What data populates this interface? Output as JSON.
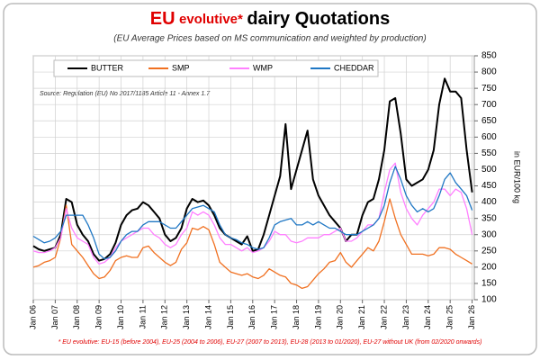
{
  "chart_data": {
    "type": "line",
    "title_parts": [
      "EU",
      "evolutive*",
      "dairy Quotations"
    ],
    "subtitle": "(EU Average Prices based on MS communication and weighted by production)",
    "source": "Source: Regulation (EU) No 2017/1185 Article 11 - Annex 1.7",
    "footnote": "* EU evolutive: EU-15 (before 2004), EU-25 (2004 to 2006), EU-27 (2007 to 2013), EU-28 (2013 to 01/2020), EU-27 without UK (from 02/2020 onwards)",
    "y_label": "in EUR/100 kg",
    "x": [
      2006,
      2006.25,
      2006.5,
      2006.75,
      2007,
      2007.25,
      2007.5,
      2007.75,
      2008,
      2008.25,
      2008.5,
      2008.75,
      2009,
      2009.25,
      2009.5,
      2009.75,
      2010,
      2010.25,
      2010.5,
      2010.75,
      2011,
      2011.25,
      2011.5,
      2011.75,
      2012,
      2012.25,
      2012.5,
      2012.75,
      2013,
      2013.25,
      2013.5,
      2013.75,
      2014,
      2014.25,
      2014.5,
      2014.75,
      2015,
      2015.25,
      2015.5,
      2015.75,
      2016,
      2016.25,
      2016.5,
      2016.75,
      2017,
      2017.25,
      2017.5,
      2017.75,
      2018,
      2018.25,
      2018.5,
      2018.75,
      2019,
      2019.25,
      2019.5,
      2019.75,
      2020,
      2020.25,
      2020.5,
      2020.75,
      2021,
      2021.25,
      2021.5,
      2021.75,
      2022,
      2022.25,
      2022.5,
      2022.75,
      2023,
      2023.25,
      2023.5,
      2023.75,
      2024,
      2024.25,
      2024.5,
      2024.75,
      2025,
      2025.25,
      2025.5,
      2025.75,
      2026
    ],
    "series": [
      {
        "name": "BUTTER",
        "color": "#000000",
        "values": [
          265,
          255,
          250,
          255,
          260,
          300,
          410,
          400,
          330,
          300,
          280,
          240,
          220,
          225,
          240,
          275,
          330,
          360,
          375,
          380,
          400,
          390,
          370,
          350,
          300,
          280,
          290,
          320,
          380,
          410,
          400,
          405,
          390,
          360,
          320,
          300,
          290,
          280,
          270,
          295,
          250,
          255,
          300,
          360,
          420,
          480,
          640,
          440,
          500,
          560,
          620,
          470,
          420,
          390,
          360,
          340,
          320,
          280,
          300,
          300,
          360,
          400,
          410,
          470,
          560,
          710,
          720,
          610,
          470,
          450,
          460,
          470,
          500,
          560,
          700,
          780,
          740,
          740,
          720,
          560,
          430
        ]
      },
      {
        "name": "SMP",
        "color": "#f07020",
        "values": [
          200,
          205,
          215,
          220,
          230,
          290,
          390,
          270,
          250,
          230,
          205,
          180,
          165,
          170,
          190,
          220,
          230,
          235,
          230,
          230,
          260,
          265,
          245,
          230,
          215,
          205,
          215,
          255,
          275,
          320,
          315,
          325,
          315,
          270,
          215,
          200,
          185,
          180,
          175,
          180,
          170,
          165,
          175,
          195,
          185,
          175,
          170,
          150,
          145,
          135,
          140,
          160,
          180,
          195,
          215,
          220,
          245,
          215,
          200,
          220,
          240,
          260,
          250,
          280,
          340,
          410,
          350,
          300,
          270,
          240,
          240,
          240,
          235,
          240,
          260,
          260,
          255,
          240,
          230,
          220,
          210
        ]
      },
      {
        "name": "WMP",
        "color": "#ff80ff",
        "values": [
          250,
          245,
          245,
          250,
          260,
          290,
          380,
          320,
          290,
          280,
          270,
          230,
          210,
          215,
          230,
          260,
          280,
          290,
          300,
          310,
          320,
          320,
          300,
          290,
          270,
          260,
          270,
          300,
          320,
          370,
          360,
          370,
          360,
          330,
          290,
          270,
          270,
          260,
          250,
          260,
          245,
          250,
          260,
          280,
          310,
          300,
          300,
          280,
          275,
          280,
          290,
          290,
          290,
          300,
          300,
          310,
          320,
          280,
          280,
          290,
          310,
          330,
          330,
          350,
          430,
          500,
          520,
          430,
          380,
          350,
          330,
          360,
          380,
          400,
          440,
          440,
          420,
          440,
          430,
          380,
          300
        ]
      },
      {
        "name": "CHEDDAR",
        "color": "#1f77c4",
        "values": [
          295,
          285,
          275,
          280,
          290,
          310,
          360,
          360,
          360,
          360,
          330,
          290,
          240,
          225,
          230,
          250,
          280,
          300,
          310,
          310,
          330,
          340,
          340,
          340,
          330,
          320,
          320,
          340,
          360,
          380,
          385,
          390,
          380,
          370,
          330,
          300,
          290,
          285,
          275,
          270,
          260,
          255,
          260,
          290,
          330,
          340,
          345,
          350,
          330,
          330,
          340,
          330,
          340,
          330,
          320,
          320,
          310,
          300,
          300,
          300,
          310,
          320,
          330,
          350,
          390,
          460,
          510,
          470,
          420,
          390,
          370,
          380,
          370,
          380,
          420,
          470,
          490,
          460,
          440,
          420,
          375
        ]
      }
    ],
    "xlim": [
      2006,
      2026.1
    ],
    "xticks": [
      {
        "value": 2006,
        "label": "Jan 06"
      },
      {
        "value": 2007,
        "label": "Jan 07"
      },
      {
        "value": 2008,
        "label": "Jan 08"
      },
      {
        "value": 2009,
        "label": "Jan 09"
      },
      {
        "value": 2010,
        "label": "Jan 10"
      },
      {
        "value": 2011,
        "label": "Jan 11"
      },
      {
        "value": 2012,
        "label": "Jan 12"
      },
      {
        "value": 2013,
        "label": "Jan 13"
      },
      {
        "value": 2014,
        "label": "Jan 14"
      },
      {
        "value": 2015,
        "label": "Jan 15"
      },
      {
        "value": 2016,
        "label": "Jan 16"
      },
      {
        "value": 2017,
        "label": "Jan 17"
      },
      {
        "value": 2018,
        "label": "Jan 18"
      },
      {
        "value": 2019,
        "label": "Jan 19"
      },
      {
        "value": 2020,
        "label": "Jan 20"
      },
      {
        "value": 2021,
        "label": "Jan 21"
      },
      {
        "value": 2022,
        "label": "Jan 22"
      },
      {
        "value": 2023,
        "label": "Jan 23"
      },
      {
        "value": 2024,
        "label": "Jan 24"
      },
      {
        "value": 2025,
        "label": "Jan 25"
      },
      {
        "value": 2026,
        "label": "Jan 26"
      }
    ],
    "ylim": [
      100,
      850
    ],
    "yticks": [
      100,
      150,
      200,
      250,
      300,
      350,
      400,
      450,
      500,
      550,
      600,
      650,
      700,
      750,
      800,
      850
    ],
    "grid": true
  }
}
